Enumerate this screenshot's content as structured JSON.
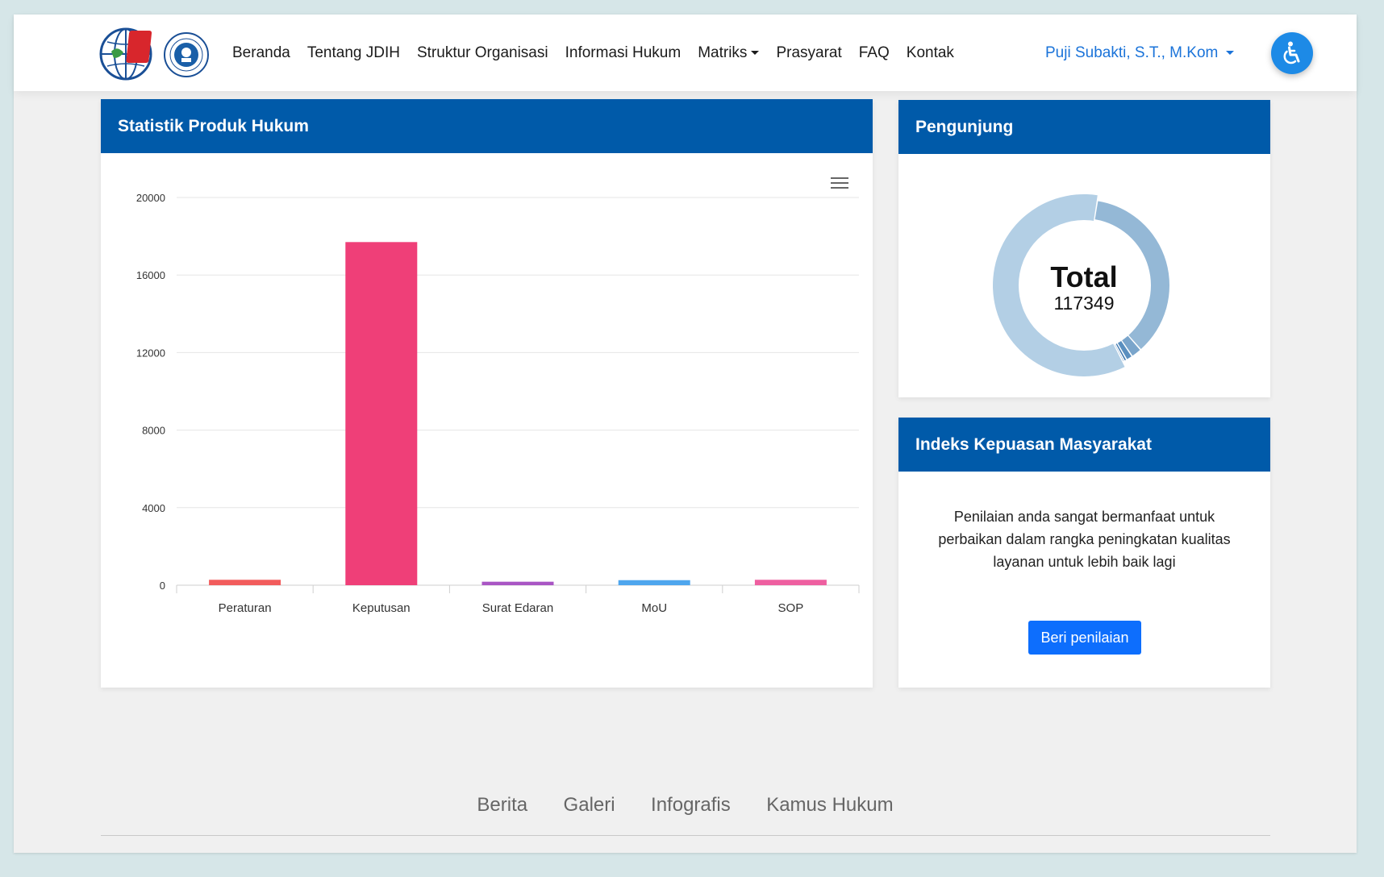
{
  "nav": {
    "links": [
      "Beranda",
      "Tentang JDIH",
      "Struktur Organisasi",
      "Informasi Hukum",
      "Matriks",
      "Prasyarat",
      "FAQ",
      "Kontak"
    ],
    "user": "Puji Subakti, S.T., M.Kom"
  },
  "stat_card": {
    "title": "Statistik Produk Hukum"
  },
  "visitor_card": {
    "title": "Pengunjung",
    "center_label": "Total",
    "center_value": "117349"
  },
  "ikm_card": {
    "title": "Indeks Kepuasan Masyarakat",
    "text": "Penilaian anda sangat bermanfaat untuk perbaikan dalam rangka peningkatan kualitas layanan untuk lebih baik lagi",
    "button": "Beri penilaian"
  },
  "footer": {
    "links": [
      "Berita",
      "Galeri",
      "Infografis",
      "Kamus Hukum"
    ]
  },
  "colors": {
    "header": "#005aa9",
    "primary": "#0d6efd",
    "user": "#1a73d9"
  },
  "chart_data": {
    "type": "bar",
    "categories": [
      "Peraturan",
      "Keputusan",
      "Surat Edaran",
      "MoU",
      "SOP"
    ],
    "values": [
      280,
      17700,
      180,
      260,
      280
    ],
    "colors": [
      "#f25c5c",
      "#ef3f78",
      "#a955c4",
      "#4ea6ee",
      "#ee5fa0"
    ],
    "ylim": [
      0,
      20000
    ],
    "yticks": [
      0,
      4000,
      8000,
      12000,
      16000,
      20000
    ],
    "grid": true
  },
  "donut_data": {
    "type": "pie",
    "slice_colors": [
      "#b3cfe5",
      "#94b8d6",
      "#7aa5cb",
      "#5a8fbf",
      "#3d78b0",
      "#2b68a3"
    ],
    "values": [
      60,
      36,
      2,
      1.2,
      0.5,
      0.3
    ]
  }
}
